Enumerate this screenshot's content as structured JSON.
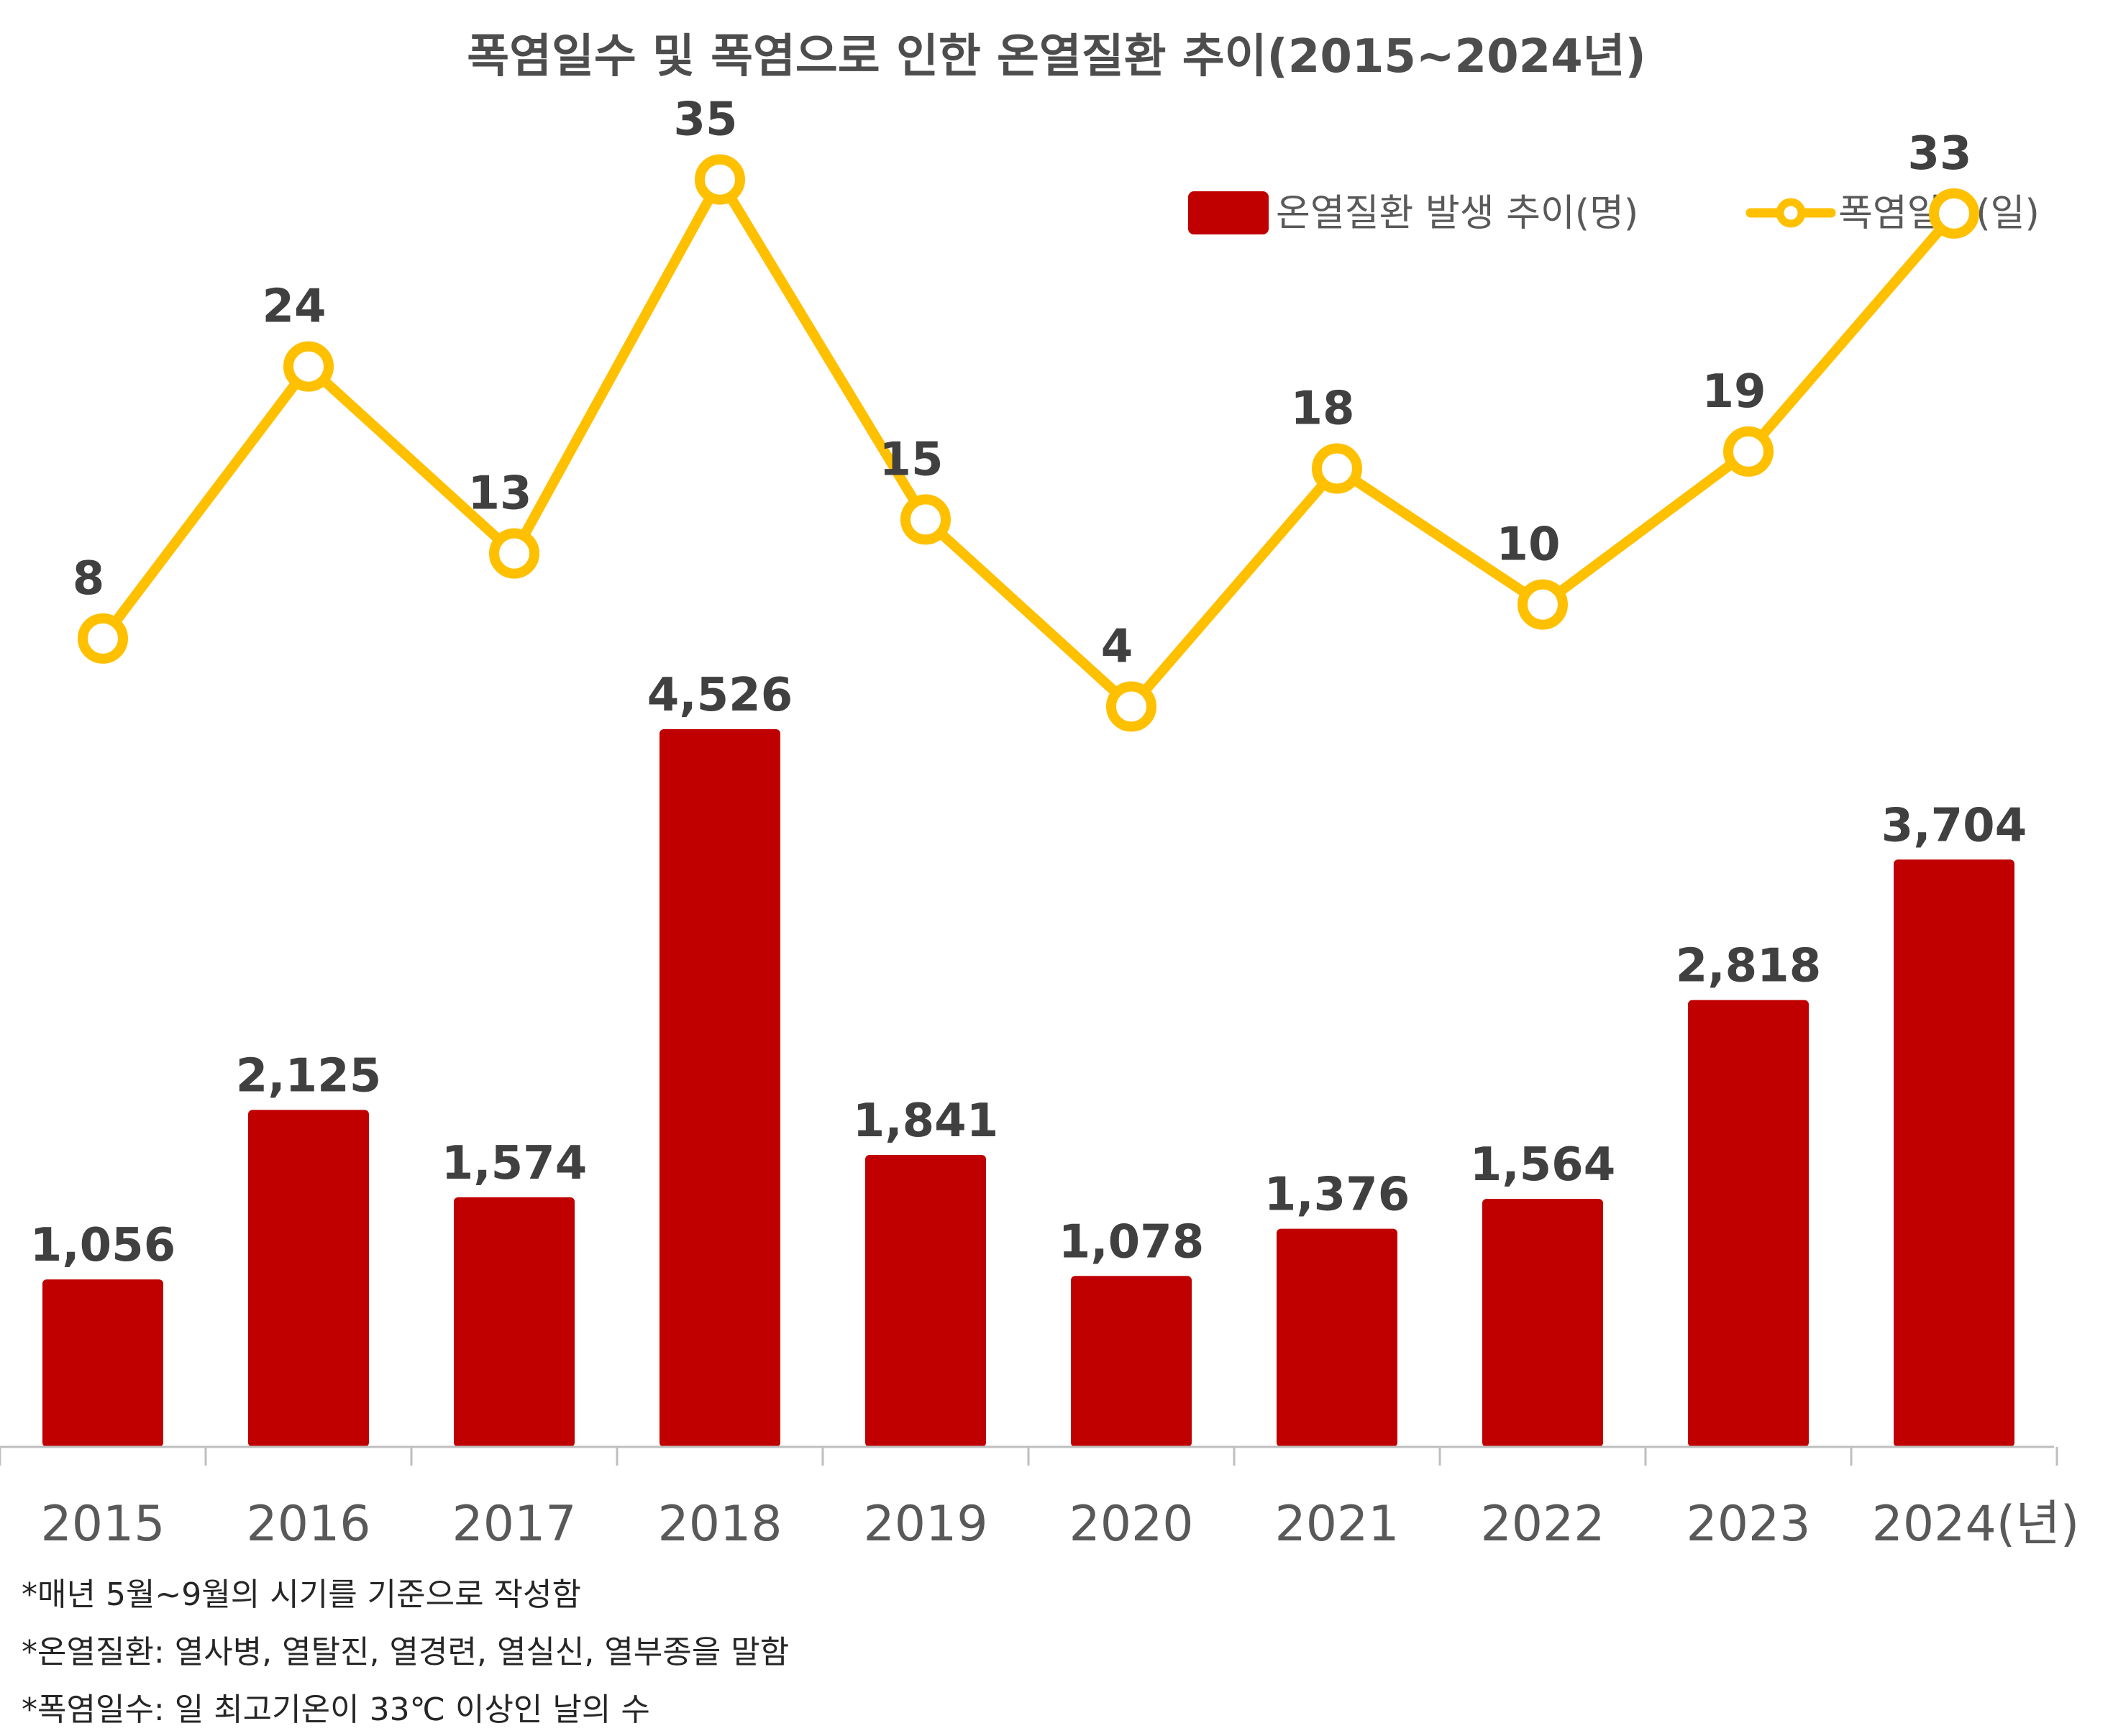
{
  "chart_data": {
    "type": "bar",
    "title": "폭염일수 및 폭염으로 인한 온열질환 추이(2015~2024년)",
    "categories": [
      "2015",
      "2016",
      "2017",
      "2018",
      "2019",
      "2020",
      "2021",
      "2022",
      "2023",
      "2024(년)"
    ],
    "series": [
      {
        "name": "온열질환 발생 추이(명)",
        "type": "bar",
        "values": [
          1056,
          2125,
          1574,
          4526,
          1841,
          1078,
          1376,
          1564,
          2818,
          3704
        ],
        "labels": [
          "1,056",
          "2,125",
          "1,574",
          "4,526",
          "1,841",
          "1,078",
          "1,376",
          "1,564",
          "2,818",
          "3,704"
        ],
        "color": "#c00000"
      },
      {
        "name": "폭염일수(일)",
        "type": "line",
        "values": [
          8,
          24,
          13,
          35,
          15,
          4,
          18,
          10,
          19,
          33
        ],
        "labels": [
          "8",
          "24",
          "13",
          "35",
          "15",
          "4",
          "18",
          "10",
          "19",
          "33"
        ],
        "color": "#ffc000"
      }
    ],
    "legend_position": "top-right",
    "grid": false
  },
  "notes": [
    "*매년 5월~9월의 시기를 기준으로 작성함",
    "*온열질환: 열사병, 열탈진, 열경련, 열실신, 열부종을 말함",
    "*폭염일수: 일 최고기온이 33℃ 이상인 날의 수"
  ]
}
